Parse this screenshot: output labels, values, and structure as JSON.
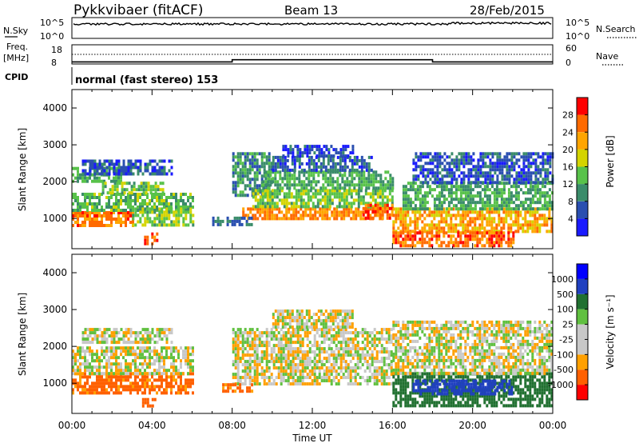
{
  "header": {
    "station": "Pykkvibaer (fitACF)",
    "beam": "Beam 13",
    "date": "28/Feb/2015"
  },
  "noise_panel": {
    "left_label": "N.Sky",
    "right_label": "N.Search",
    "left_ticks": [
      "10^5",
      "10^0"
    ],
    "right_ticks": [
      "10^5",
      "10^0"
    ]
  },
  "freq_panel": {
    "left_label_1": "Freq.",
    "left_label_2": "[MHz]",
    "right_label": "Nave",
    "left_ticks": [
      "18",
      "8"
    ],
    "right_ticks": [
      "60",
      "0"
    ],
    "freq_trace": [
      {
        "t": 0,
        "v": 9.1
      },
      {
        "t": 8,
        "v": 9.1
      },
      {
        "t": 8,
        "v": 10.2
      },
      {
        "t": 18,
        "v": 10.2
      },
      {
        "t": 18,
        "v": 9.1
      },
      {
        "t": 24,
        "v": 9.1
      }
    ],
    "nave_dotted": 35
  },
  "cpid": {
    "label": "CPID",
    "text": "normal (fast stereo) 153"
  },
  "x_ticks": [
    "00:00",
    "04:00",
    "08:00",
    "12:00",
    "16:00",
    "20:00",
    "00:00"
  ],
  "x_label": "Time UT",
  "colors": {
    "power": [
      "#1a1aff",
      "#2a4fb0",
      "#3a8c6a",
      "#58c24a",
      "#d4d400",
      "#ffa500",
      "#ff6a00",
      "#ff0000"
    ],
    "velocity": [
      "#ff0000",
      "#ff6000",
      "#ffa000",
      "#c8c8c8",
      "#c8c8c8",
      "#60c040",
      "#207030",
      "#2040c0",
      "#0000ff"
    ]
  },
  "chart_data": [
    {
      "type": "heatmap",
      "ylabel": "Slant Range [km]",
      "yticks": [
        1000,
        2000,
        3000,
        4000
      ],
      "ylim": [
        180,
        4500
      ],
      "xlim": [
        0,
        24
      ],
      "colorbar": {
        "label": "Power [dB]",
        "ticks": [
          4,
          8,
          12,
          16,
          20,
          24,
          28
        ],
        "range": [
          0,
          32
        ]
      },
      "regions": [
        {
          "t0": 0.0,
          "t1": 3.0,
          "r0": 780,
          "r1": 1200,
          "v": 25
        },
        {
          "t0": 0.0,
          "t1": 6.0,
          "r0": 1200,
          "r1": 1700,
          "v": 13
        },
        {
          "t0": 0.0,
          "t1": 2.5,
          "r0": 2000,
          "r1": 2400,
          "v": 12
        },
        {
          "t0": 0.5,
          "t1": 5.0,
          "r0": 2200,
          "r1": 2600,
          "v": 6
        },
        {
          "t0": 3.0,
          "t1": 6.0,
          "r0": 850,
          "r1": 1300,
          "v": 15
        },
        {
          "t0": 3.6,
          "t1": 4.2,
          "r0": 350,
          "r1": 620,
          "v": 27
        },
        {
          "t0": 1.5,
          "t1": 4.5,
          "r0": 1700,
          "r1": 2000,
          "v": 14
        },
        {
          "t0": 8.0,
          "t1": 10.0,
          "r0": 1600,
          "r1": 2800,
          "v": 10
        },
        {
          "t0": 8.5,
          "t1": 15.5,
          "r0": 1000,
          "r1": 1300,
          "v": 24
        },
        {
          "t0": 9.0,
          "t1": 16.0,
          "r0": 1300,
          "r1": 1800,
          "v": 15
        },
        {
          "t0": 9.5,
          "t1": 16.0,
          "r0": 1800,
          "r1": 2300,
          "v": 12
        },
        {
          "t0": 10.0,
          "t1": 15.0,
          "r0": 2300,
          "r1": 2700,
          "v": 7
        },
        {
          "t0": 10.5,
          "t1": 14.0,
          "r0": 2700,
          "r1": 3000,
          "v": 5
        },
        {
          "t0": 14.5,
          "t1": 16.0,
          "r0": 1000,
          "r1": 1400,
          "v": 27
        },
        {
          "t0": 16.0,
          "t1": 24.0,
          "r0": 650,
          "r1": 1300,
          "v": 22
        },
        {
          "t0": 16.0,
          "t1": 22.0,
          "r0": 300,
          "r1": 650,
          "v": 26
        },
        {
          "t0": 16.5,
          "t1": 24.0,
          "r0": 1300,
          "r1": 2000,
          "v": 12
        },
        {
          "t0": 17.0,
          "t1": 24.0,
          "r0": 2000,
          "r1": 2800,
          "v": 6
        },
        {
          "t0": 7.0,
          "t1": 9.0,
          "r0": 850,
          "r1": 1050,
          "v": 8
        }
      ]
    },
    {
      "type": "heatmap",
      "ylabel": "Slant Range [km]",
      "yticks": [
        1000,
        2000,
        3000,
        4000
      ],
      "ylim": [
        180,
        4500
      ],
      "xlim": [
        0,
        24
      ],
      "colorbar": {
        "label": "Velocity [m s⁻¹]",
        "ticks": [
          1000,
          500,
          100,
          25,
          -25,
          -100,
          -500,
          -1000
        ],
        "range": [
          -1200,
          1200
        ]
      },
      "regions": [
        {
          "t0": 0.0,
          "t1": 6.0,
          "r0": 700,
          "r1": 1300,
          "v": -150
        },
        {
          "t0": 0.0,
          "t1": 6.0,
          "r0": 1300,
          "r1": 2000,
          "v": 0
        },
        {
          "t0": 0.5,
          "t1": 5.0,
          "r0": 2100,
          "r1": 2500,
          "v": 0
        },
        {
          "t0": 3.5,
          "t1": 4.2,
          "r0": 350,
          "r1": 600,
          "v": -200
        },
        {
          "t0": 8.0,
          "t1": 16.0,
          "r0": 1000,
          "r1": 2500,
          "v": 0
        },
        {
          "t0": 10.0,
          "t1": 14.0,
          "r0": 2500,
          "r1": 3000,
          "v": 0
        },
        {
          "t0": 7.5,
          "t1": 9.0,
          "r0": 800,
          "r1": 1000,
          "v": -150
        },
        {
          "t0": 16.0,
          "t1": 24.0,
          "r0": 350,
          "r1": 1300,
          "v": 300
        },
        {
          "t0": 16.0,
          "t1": 24.0,
          "r0": 1300,
          "r1": 2700,
          "v": 0
        },
        {
          "t0": 17.0,
          "t1": 22.0,
          "r0": 700,
          "r1": 1100,
          "v": 800
        }
      ]
    }
  ]
}
